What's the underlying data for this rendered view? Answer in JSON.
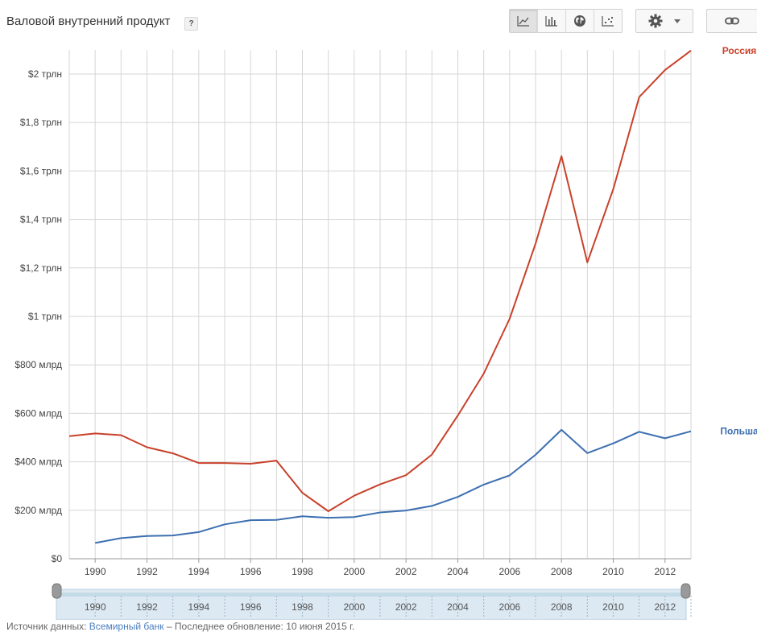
{
  "header": {
    "title": "Валовой внутренний продукт",
    "help_label": "?"
  },
  "toolbar": {
    "buttons": [
      {
        "icon": "line-chart-icon",
        "active": true
      },
      {
        "icon": "bar-chart-icon",
        "active": false
      },
      {
        "icon": "globe-icon",
        "active": false
      },
      {
        "icon": "scatter-chart-icon",
        "active": false
      }
    ],
    "settings_icon": "gear-icon",
    "settings_dropdown_icon": "caret-down-icon",
    "share_icon": "link-icon"
  },
  "footer": {
    "source_prefix": "Источник данных: ",
    "source_link": "Всемирный банк",
    "updated": " – Последнее обновление: 10 июня 2015 г."
  },
  "colors": {
    "russia": "#c8412a",
    "poland": "#3d6fb0",
    "grid": "#d6d6d6",
    "timeline": "#dce9f2"
  },
  "chart_data": {
    "type": "line",
    "title": "Валовой внутренний продукт",
    "xlim": [
      1989,
      2013
    ],
    "ylim": [
      0,
      2100
    ],
    "grid": true,
    "legend": "inline-right",
    "x_ticks": [
      1990,
      1992,
      1994,
      1996,
      1998,
      2000,
      2002,
      2004,
      2006,
      2008,
      2010,
      2012
    ],
    "y_ticks": [
      {
        "value": 0,
        "label": "$0"
      },
      {
        "value": 200,
        "label": "$200 млрд"
      },
      {
        "value": 400,
        "label": "$400 млрд"
      },
      {
        "value": 600,
        "label": "$600 млрд"
      },
      {
        "value": 800,
        "label": "$800 млрд"
      },
      {
        "value": 1000,
        "label": "$1 трлн"
      },
      {
        "value": 1200,
        "label": "$1,2 трлн"
      },
      {
        "value": 1400,
        "label": "$1,4 трлн"
      },
      {
        "value": 1600,
        "label": "$1,6 трлн"
      },
      {
        "value": 1800,
        "label": "$1,8 трлн"
      },
      {
        "value": 2000,
        "label": "$2 трлн"
      }
    ],
    "series": [
      {
        "name": "Россия",
        "color": "#c8412a",
        "x": [
          1989,
          1990,
          1991,
          1992,
          1993,
          1994,
          1995,
          1996,
          1997,
          1998,
          1999,
          2000,
          2001,
          2002,
          2003,
          2004,
          2005,
          2006,
          2007,
          2008,
          2009,
          2010,
          2011,
          2012,
          2013
        ],
        "y": [
          506,
          517,
          510,
          460,
          435,
          395,
          395,
          392,
          405,
          272,
          196,
          260,
          307,
          345,
          430,
          591,
          764,
          990,
          1300,
          1661,
          1223,
          1525,
          1905,
          2017,
          2097
        ]
      },
      {
        "name": "Польша",
        "color": "#3d6fb0",
        "x": [
          1990,
          1991,
          1992,
          1993,
          1994,
          1995,
          1996,
          1997,
          1998,
          1999,
          2000,
          2001,
          2002,
          2003,
          2004,
          2005,
          2006,
          2007,
          2008,
          2009,
          2010,
          2011,
          2012,
          2013
        ],
        "y": [
          65,
          85,
          94,
          96,
          110,
          142,
          159,
          160,
          175,
          169,
          172,
          191,
          199,
          218,
          255,
          306,
          344,
          429,
          532,
          436,
          476,
          524,
          497,
          526
        ]
      }
    ]
  }
}
